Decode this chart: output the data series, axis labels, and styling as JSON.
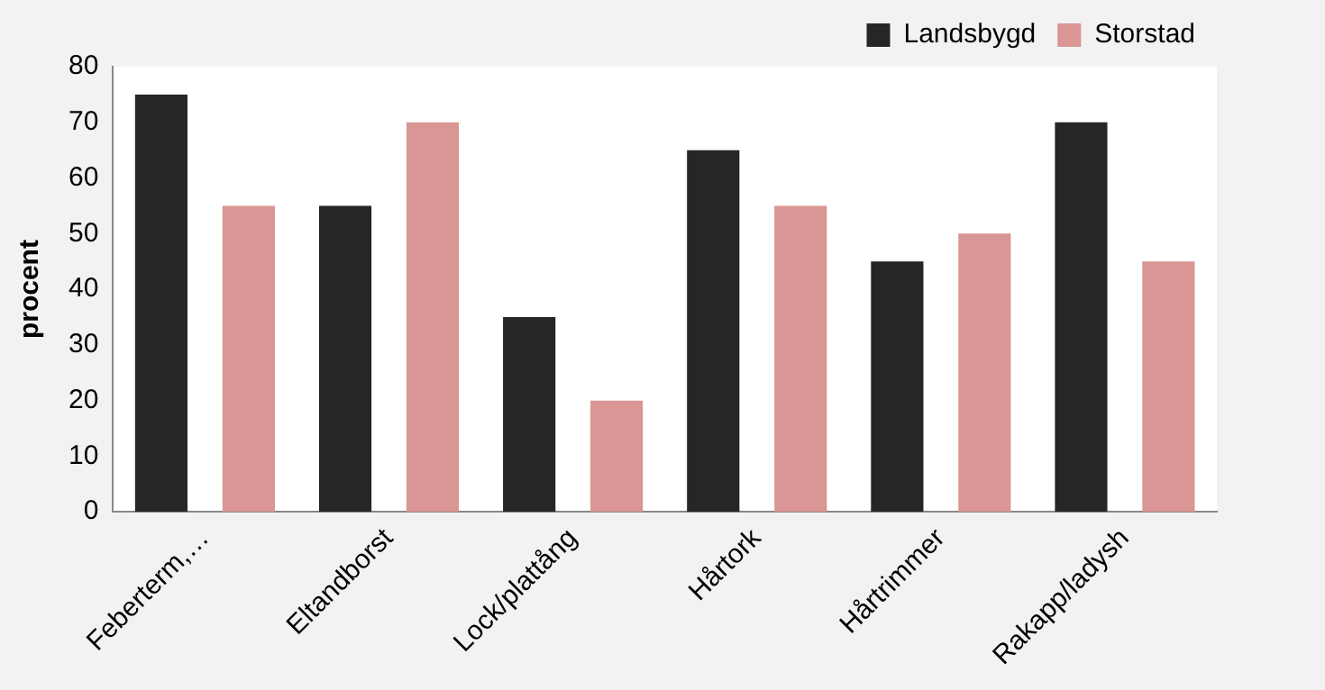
{
  "chart_data": {
    "type": "bar",
    "ylabel": "procent",
    "categories": [
      "Feberterm,…",
      "Eltandborst",
      "Lock/plattång",
      "Hårtork",
      "Hårtrimmer",
      "Rakapp/ladysh"
    ],
    "series": [
      {
        "name": "Landsbygd",
        "color": "#262626",
        "values": [
          75,
          55,
          35,
          65,
          45,
          70
        ]
      },
      {
        "name": "Storstad",
        "color": "#d99694",
        "values": [
          55,
          70,
          20,
          55,
          50,
          45
        ]
      }
    ],
    "ylim": [
      0,
      80
    ],
    "yticks": [
      0,
      10,
      20,
      30,
      40,
      50,
      60,
      70,
      80
    ],
    "grid": false,
    "legend": "top right"
  }
}
